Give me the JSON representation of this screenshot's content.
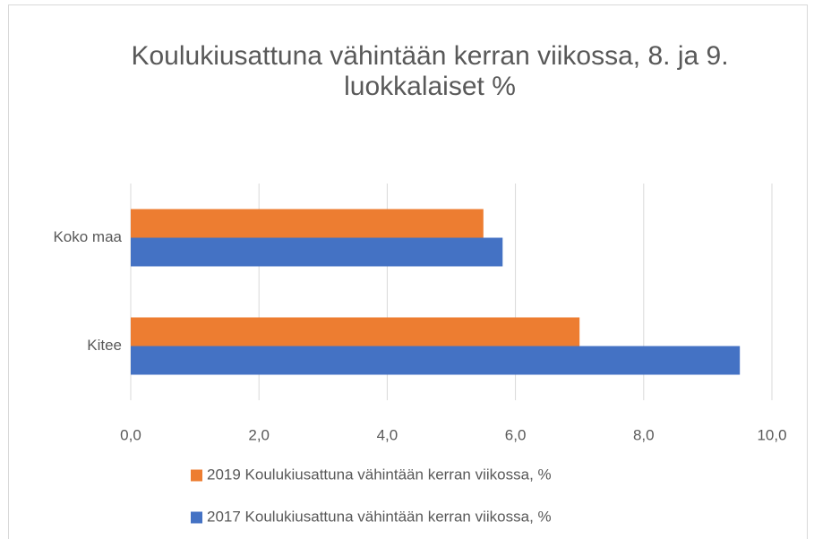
{
  "chart_data": {
    "type": "hbar",
    "title": "Koulukiusattuna vähintään kerran viikossa, 8. ja 9. luokkalaiset %",
    "categories": [
      "Koko maa",
      "Kitee"
    ],
    "series": [
      {
        "name": "2019 Koulukiusattuna vähintään kerran viikossa, %",
        "color": "#ED7D31",
        "values": [
          5.5,
          7.0
        ]
      },
      {
        "name": "2017 Koulukiusattuna vähintään kerran viikossa, %",
        "color": "#4472C4",
        "values": [
          5.8,
          9.5
        ]
      }
    ],
    "xlim": [
      0,
      10
    ],
    "xticks": [
      {
        "value": 0,
        "label": "0,0"
      },
      {
        "value": 2,
        "label": "2,0"
      },
      {
        "value": 4,
        "label": "4,0"
      },
      {
        "value": 6,
        "label": "6,0"
      },
      {
        "value": 8,
        "label": "8,0"
      },
      {
        "value": 10,
        "label": "10,0"
      }
    ],
    "grid": true,
    "legend": "bottom"
  }
}
